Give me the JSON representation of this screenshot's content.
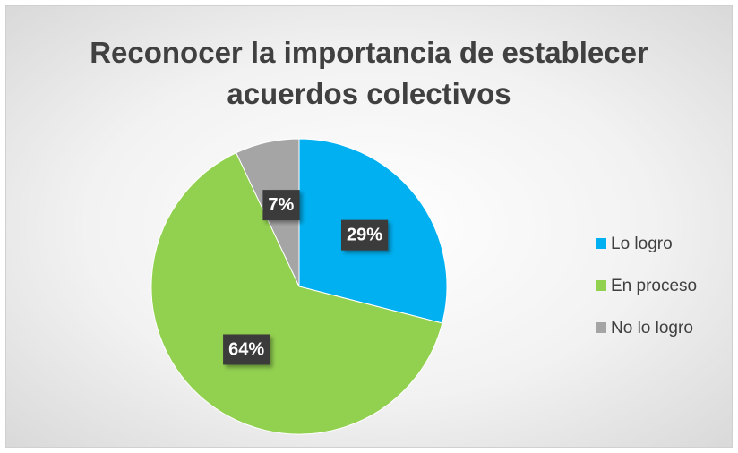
{
  "chart_data": {
    "type": "pie",
    "title": "Reconocer la importancia de establecer acuerdos colectivos",
    "categories": [
      "Lo logro",
      "En proceso",
      "No lo logro"
    ],
    "values": [
      29,
      64,
      7
    ],
    "value_labels": [
      "29%",
      "64%",
      "7%"
    ],
    "colors": [
      "#00b0f0",
      "#92d050",
      "#a5a5a5"
    ],
    "legend": "right"
  }
}
